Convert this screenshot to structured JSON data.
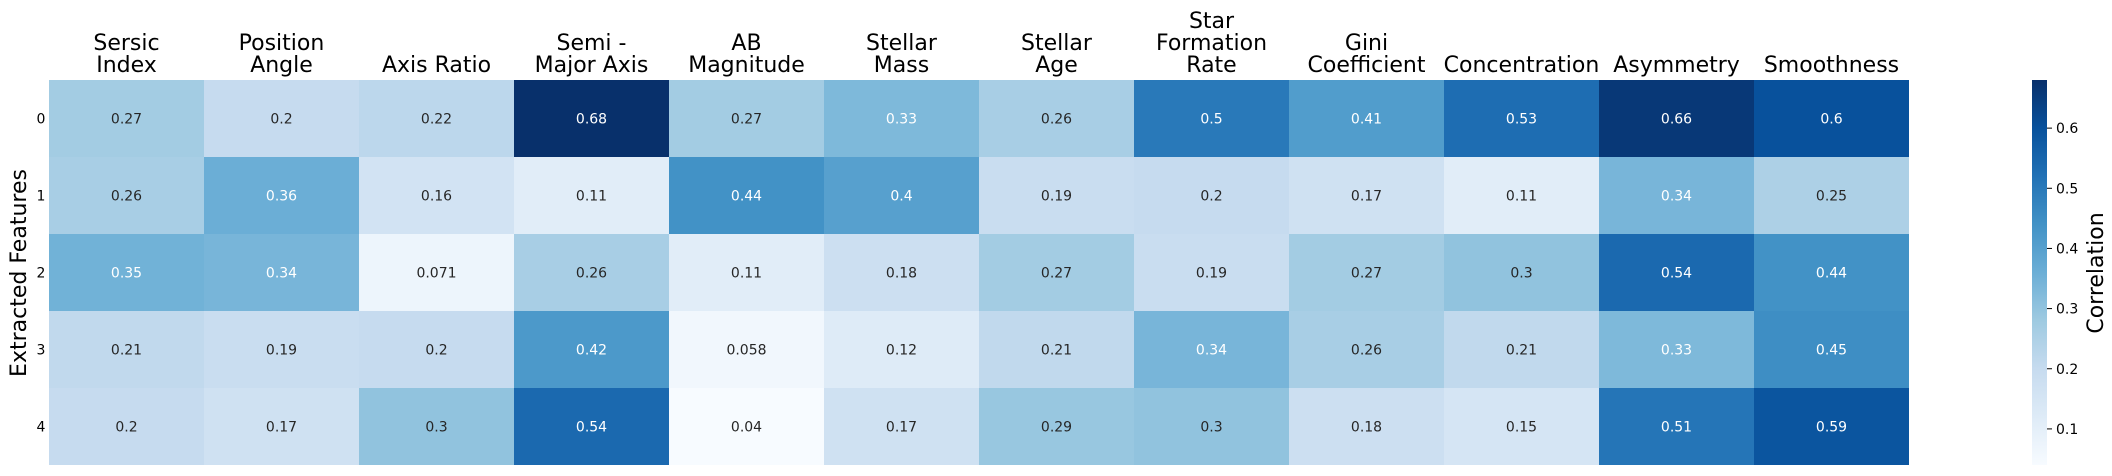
{
  "chart_data": {
    "type": "heatmap",
    "columns": [
      [
        "Sersic",
        "Index"
      ],
      [
        "Position",
        "Angle"
      ],
      [
        "Axis Ratio"
      ],
      [
        "Semi -",
        "Major Axis"
      ],
      [
        "AB",
        "Magnitude"
      ],
      [
        "Stellar",
        "Mass"
      ],
      [
        "Stellar",
        "Age"
      ],
      [
        "Star",
        "Formation",
        "Rate"
      ],
      [
        "Gini",
        "Coefficient"
      ],
      [
        "Concentration"
      ],
      [
        "Asymmetry"
      ],
      [
        "Smoothness"
      ]
    ],
    "rows": [
      "0",
      "1",
      "2",
      "3",
      "4"
    ],
    "values": [
      [
        "0.27",
        "0.2",
        "0.22",
        "0.68",
        "0.27",
        "0.33",
        "0.26",
        "0.5",
        "0.41",
        "0.53",
        "0.66",
        "0.6"
      ],
      [
        "0.26",
        "0.36",
        "0.16",
        "0.11",
        "0.44",
        "0.4",
        "0.19",
        "0.2",
        "0.17",
        "0.11",
        "0.34",
        "0.25"
      ],
      [
        "0.35",
        "0.34",
        "0.071",
        "0.26",
        "0.11",
        "0.18",
        "0.27",
        "0.19",
        "0.27",
        "0.3",
        "0.54",
        "0.44"
      ],
      [
        "0.21",
        "0.19",
        "0.2",
        "0.42",
        "0.058",
        "0.12",
        "0.21",
        "0.34",
        "0.26",
        "0.21",
        "0.33",
        "0.45"
      ],
      [
        "0.2",
        "0.17",
        "0.3",
        "0.54",
        "0.04",
        "0.17",
        "0.29",
        "0.3",
        "0.18",
        "0.15",
        "0.51",
        "0.59"
      ]
    ],
    "ylabel": "Extracted Features",
    "colorbar": {
      "label": "Correlation",
      "ticks": [
        "0.1",
        "0.2",
        "0.3",
        "0.4",
        "0.5",
        "0.6"
      ],
      "range": [
        0.04,
        0.68
      ],
      "colormap": "Blues"
    }
  }
}
